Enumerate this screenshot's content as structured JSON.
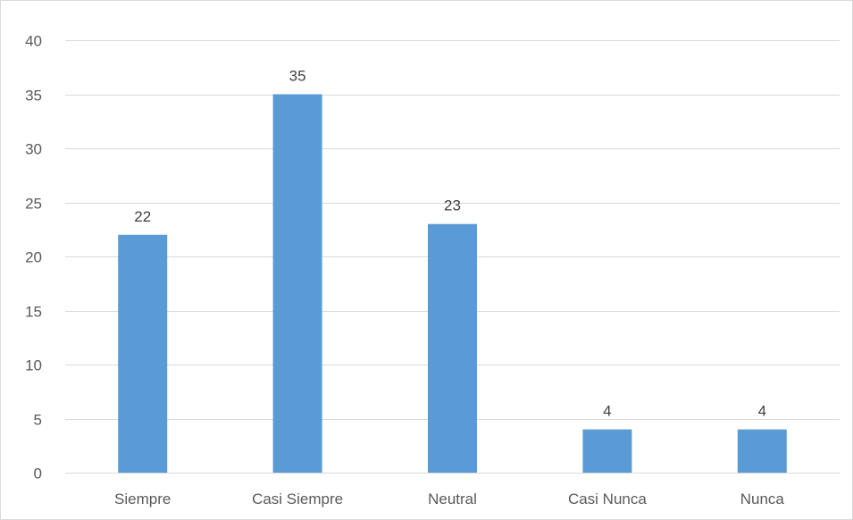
{
  "chart_data": {
    "type": "bar",
    "categories": [
      "Siempre",
      "Casi Siempre",
      "Neutral",
      "Casi Nunca",
      "Nunca"
    ],
    "values": [
      22,
      35,
      23,
      4,
      4
    ],
    "data_labels": [
      "22",
      "35",
      "23",
      "4",
      "4"
    ],
    "title": "",
    "xlabel": "",
    "ylabel": "",
    "ylim": [
      0,
      40
    ],
    "yticks": [
      0,
      5,
      10,
      15,
      20,
      25,
      30,
      35,
      40
    ],
    "ytick_labels": [
      "0",
      "5",
      "10",
      "15",
      "20",
      "25",
      "30",
      "35",
      "40"
    ],
    "grid": true,
    "legend": "none",
    "bar_color": "#5b9bd5",
    "grid_color": "#d9d9d9",
    "text_color": "#595959"
  }
}
